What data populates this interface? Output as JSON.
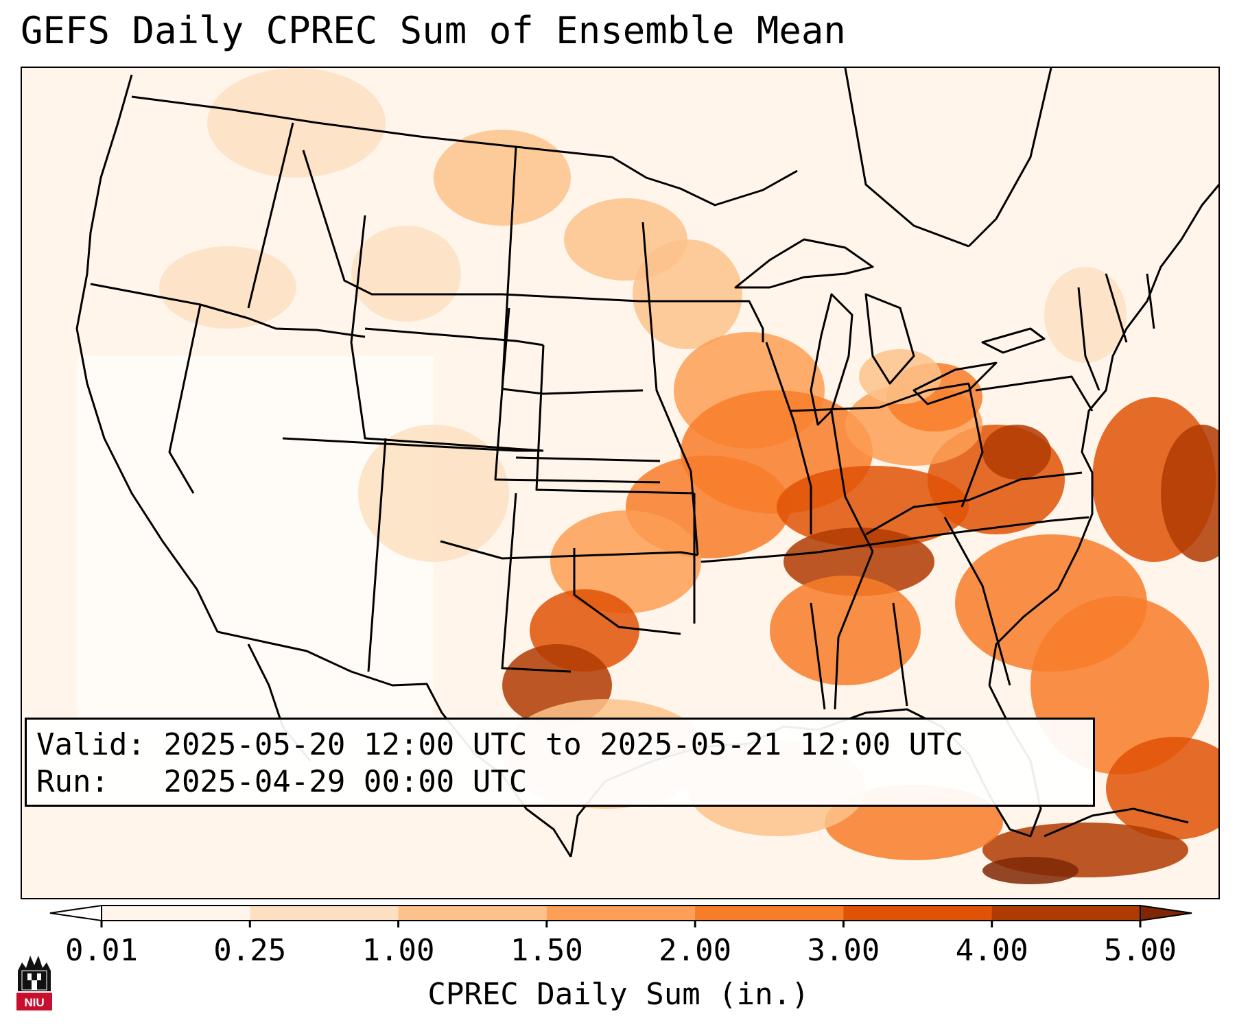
{
  "title": "GEFS Daily CPREC Sum of Ensemble Mean",
  "info": {
    "valid_label": "Valid:",
    "valid_value": "2025-05-20 12:00 UTC to 2025-05-21 12:00 UTC",
    "run_label": "Run:",
    "run_value": "2025-04-29 00:00 UTC"
  },
  "colorbar": {
    "label": "CPREC Daily Sum (in.)",
    "ticks": [
      "0.01",
      "0.25",
      "1.00",
      "1.50",
      "2.00",
      "3.00",
      "4.00",
      "5.00"
    ],
    "colors": [
      "#fff5eb",
      "#fde0c2",
      "#fdc28c",
      "#fd9f56",
      "#f87d29",
      "#e05206",
      "#b03b02",
      "#7f2704"
    ],
    "under_color": "#ffffff",
    "over_color": "#7f2704"
  },
  "logo": {
    "text": "NIU",
    "color": "#c8102e"
  },
  "colors": {
    "background": "#ffffff",
    "border": "#000000",
    "water_low": "#fff5eb"
  }
}
